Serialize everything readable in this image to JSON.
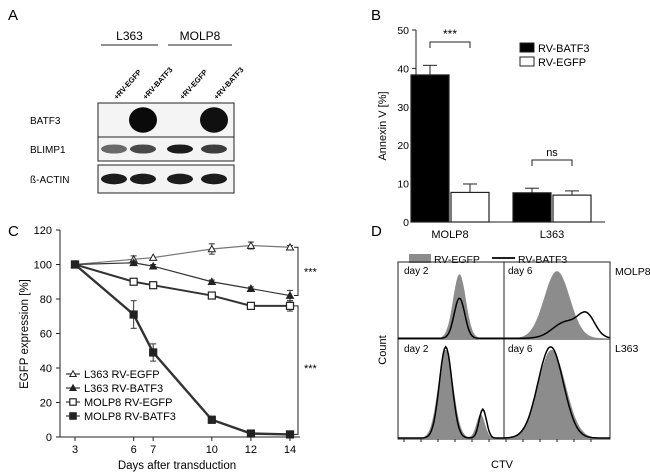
{
  "panel_a": {
    "letter": "A",
    "groups": [
      "L363",
      "MOLP8"
    ],
    "lanes": [
      "+RV-EGFP",
      "+RV-BATF3",
      "+RV-EGFP",
      "+RV-BATF3"
    ],
    "blots": [
      {
        "label": "BATF3",
        "intensity": [
          0.02,
          0.98,
          0.02,
          0.95
        ]
      },
      {
        "label": "BLIMP1",
        "intensity": [
          0.55,
          0.7,
          0.9,
          0.75
        ]
      },
      {
        "label": "ß-ACTIN",
        "intensity": [
          0.9,
          0.9,
          0.9,
          0.9
        ]
      }
    ]
  },
  "panel_b": {
    "letter": "B",
    "significance": [
      "***",
      "ns"
    ],
    "legend_location": "top-right",
    "chart_data": {
      "type": "bar",
      "categories": [
        "MOLP8",
        "L363"
      ],
      "series": [
        {
          "name": "RV-BATF3",
          "values": [
            38.3,
            7.6
          ],
          "errors": [
            2.5,
            1.2
          ],
          "color": "#000000"
        },
        {
          "name": "RV-EGFP",
          "values": [
            7.7,
            7.0
          ],
          "errors": [
            2.2,
            1.1
          ],
          "color": "#ffffff"
        }
      ],
      "ylabel": "Annexin V [%]",
      "xlabel": "",
      "ylim": [
        0,
        50
      ],
      "yticks": [
        "0",
        "10",
        "20",
        "30",
        "40",
        "50"
      ]
    }
  },
  "panel_c": {
    "letter": "C",
    "significance": [
      "***",
      "***"
    ],
    "chart_data": {
      "type": "line",
      "x": [
        3,
        6,
        7,
        10,
        12,
        14
      ],
      "xticks": [
        "3",
        "6",
        "7",
        "10",
        "12",
        "14"
      ],
      "yticks": [
        "0",
        "20",
        "40",
        "60",
        "80",
        "100",
        "120"
      ],
      "ylim": [
        0,
        120
      ],
      "xlabel": "Days after transduction",
      "ylabel": "EGFP expression [%]",
      "series": [
        {
          "name": "L363 RV-EGFP",
          "marker": "triangle-open",
          "values": [
            100,
            103,
            104,
            109,
            111,
            110
          ],
          "errors": [
            0,
            2,
            0,
            3,
            2,
            1
          ]
        },
        {
          "name": "L363 RV-BATF3",
          "marker": "triangle-filled",
          "values": [
            100,
            101,
            99,
            90,
            86,
            82
          ],
          "errors": [
            0,
            1,
            1,
            1,
            1,
            3
          ]
        },
        {
          "name": "MOLP8 RV-EGFP",
          "marker": "square-open",
          "values": [
            100,
            90,
            88,
            82,
            76,
            76
          ],
          "errors": [
            0,
            1,
            1,
            2,
            2,
            3
          ]
        },
        {
          "name": "MOLP8 RV-BATF3",
          "marker": "square-filled",
          "values": [
            100,
            71,
            49,
            10,
            2,
            1.5
          ],
          "errors": [
            0,
            8,
            5,
            2,
            0.5,
            0.5
          ]
        }
      ]
    }
  },
  "panel_d": {
    "letter": "D",
    "legend": [
      "RV-EGFP",
      "RV-BATF3"
    ],
    "cells": [
      "day 2",
      "day 6",
      "day 2",
      "day 6"
    ],
    "row_labels": [
      "MOLP8",
      "L363"
    ],
    "ylabel": "Count",
    "xlabel": "CTV",
    "colors": {
      "egfp_fill": "#8c8c8c",
      "batf3_line": "#000000"
    }
  }
}
